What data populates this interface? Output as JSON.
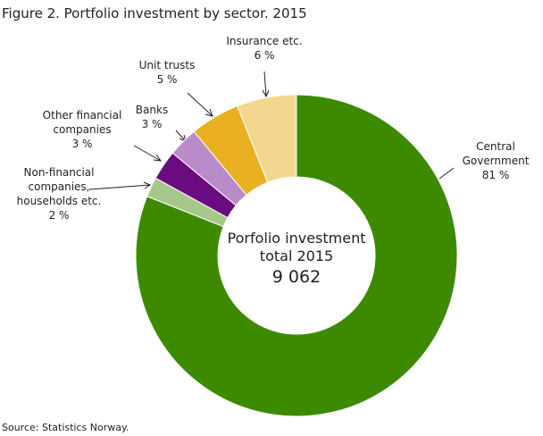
{
  "chart_data": {
    "type": "donut",
    "title": "Figure 2. Portfolio investment by sector. 2015",
    "categories": [
      "Central\nGovernment",
      "Non-financial\ncompanies,\nhouseholds etc.",
      "Other financial\ncompanies",
      "Banks",
      "Unit trusts",
      "Insurance  etc."
    ],
    "values": [
      81,
      2,
      3,
      3,
      5,
      6
    ],
    "value_labels": [
      "81 %",
      "2 %",
      "3 %",
      "3 %",
      "5 %",
      "6 %"
    ],
    "colors": [
      "#3d8a00",
      "#a6c98b",
      "#6b0b80",
      "#b98bc9",
      "#e9b022",
      "#f4d78f"
    ],
    "center_text": "Porfolio investment\ntotal 2015",
    "center_value": "9 062",
    "source": "Source: Statistics Norway."
  }
}
